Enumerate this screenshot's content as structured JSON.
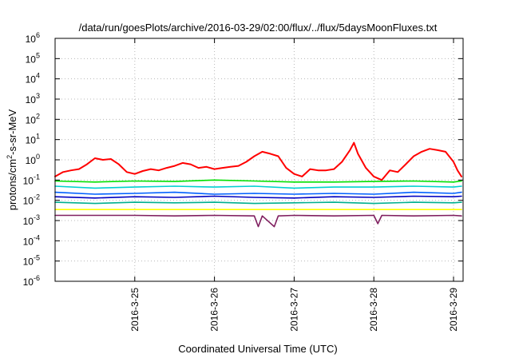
{
  "chart_data": {
    "type": "line",
    "title": "/data/run/goesPlots/archive/2016-03-29/02:00/flux/../flux/5daysMoonFluxes.txt",
    "xlabel": "Coordinated Universal Time (UTC)",
    "ylabel_base": "protons/cm",
    "ylabel_sup": "2",
    "ylabel_rest": "-s-sr-MeV",
    "y_scale": "log",
    "ylim": [
      1e-06,
      1000000
    ],
    "xlim": [
      24.0,
      29.12
    ],
    "grid": true,
    "y_ticks": [
      {
        "exp": "6",
        "value": 1000000
      },
      {
        "exp": "5",
        "value": 100000
      },
      {
        "exp": "4",
        "value": 10000
      },
      {
        "exp": "3",
        "value": 1000
      },
      {
        "exp": "2",
        "value": 100
      },
      {
        "exp": "1",
        "value": 10
      },
      {
        "exp": "0",
        "value": 1
      },
      {
        "exp": "-1",
        "value": 0.1
      },
      {
        "exp": "-2",
        "value": 0.01
      },
      {
        "exp": "-3",
        "value": 0.001
      },
      {
        "exp": "-4",
        "value": 0.0001
      },
      {
        "exp": "-5",
        "value": 1e-05
      },
      {
        "exp": "-6",
        "value": 1e-06
      }
    ],
    "x_ticks": [
      {
        "label": "2016-3-25",
        "day": 25
      },
      {
        "label": "2016-3-26",
        "day": 26
      },
      {
        "label": "2016-3-27",
        "day": 27
      },
      {
        "label": "2016-3-28",
        "day": 28
      },
      {
        "label": "2016-3-29",
        "day": 29
      }
    ],
    "series": [
      {
        "color": "#ff0000",
        "x": [
          24.0,
          24.1,
          24.2,
          24.3,
          24.4,
          24.5,
          24.6,
          24.7,
          24.8,
          24.9,
          25.0,
          25.1,
          25.2,
          25.3,
          25.4,
          25.5,
          25.6,
          25.7,
          25.8,
          25.9,
          26.0,
          26.1,
          26.2,
          26.3,
          26.4,
          26.5,
          26.6,
          26.7,
          26.8,
          26.9,
          27.0,
          27.1,
          27.2,
          27.3,
          27.4,
          27.5,
          27.6,
          27.7,
          27.75,
          27.8,
          27.9,
          28.0,
          28.1,
          28.2,
          28.3,
          28.4,
          28.5,
          28.6,
          28.7,
          28.8,
          28.9,
          29.0,
          29.05,
          29.1
        ],
        "y": [
          0.15,
          0.25,
          0.3,
          0.35,
          0.6,
          1.2,
          1.0,
          1.1,
          0.6,
          0.25,
          0.2,
          0.28,
          0.35,
          0.3,
          0.4,
          0.5,
          0.7,
          0.6,
          0.4,
          0.45,
          0.35,
          0.4,
          0.45,
          0.5,
          0.8,
          1.5,
          2.5,
          2.0,
          1.5,
          0.4,
          0.2,
          0.15,
          0.35,
          0.3,
          0.3,
          0.35,
          0.8,
          3.0,
          7.0,
          2.0,
          0.4,
          0.15,
          0.1,
          0.3,
          0.25,
          0.6,
          1.5,
          2.5,
          3.5,
          3.0,
          2.5,
          0.8,
          0.3,
          0.15
        ]
      },
      {
        "color": "#00e000",
        "x": [
          24.0,
          24.5,
          25.0,
          25.5,
          26.0,
          26.5,
          27.0,
          27.5,
          28.0,
          28.5,
          29.0,
          29.1
        ],
        "y": [
          0.09,
          0.08,
          0.09,
          0.085,
          0.1,
          0.09,
          0.08,
          0.08,
          0.085,
          0.09,
          0.08,
          0.09
        ]
      },
      {
        "color": "#00d0d0",
        "x": [
          24.0,
          24.5,
          25.0,
          25.5,
          26.0,
          26.5,
          27.0,
          27.5,
          28.0,
          28.5,
          29.0,
          29.1
        ],
        "y": [
          0.05,
          0.04,
          0.045,
          0.05,
          0.045,
          0.05,
          0.04,
          0.045,
          0.045,
          0.05,
          0.045,
          0.05
        ]
      },
      {
        "color": "#0060ff",
        "x": [
          24.0,
          24.5,
          25.0,
          25.5,
          26.0,
          26.5,
          27.0,
          27.5,
          28.0,
          28.5,
          29.0,
          29.1
        ],
        "y": [
          0.025,
          0.02,
          0.022,
          0.025,
          0.02,
          0.022,
          0.02,
          0.022,
          0.02,
          0.025,
          0.022,
          0.025
        ]
      },
      {
        "color": "#0000c0",
        "x": [
          24.0,
          24.5,
          25.0,
          25.5,
          26.0,
          26.5,
          27.0,
          27.5,
          28.0,
          28.5,
          29.0,
          29.1
        ],
        "y": [
          0.015,
          0.013,
          0.015,
          0.014,
          0.016,
          0.014,
          0.013,
          0.015,
          0.014,
          0.016,
          0.015,
          0.016
        ]
      },
      {
        "color": "#00b090",
        "x": [
          24.0,
          24.5,
          25.0,
          25.5,
          26.0,
          26.5,
          27.0,
          27.5,
          28.0,
          28.5,
          29.0,
          29.1
        ],
        "y": [
          0.008,
          0.007,
          0.008,
          0.0075,
          0.008,
          0.007,
          0.0075,
          0.008,
          0.007,
          0.008,
          0.0075,
          0.008
        ]
      },
      {
        "color": "#ffff00",
        "x": [
          24.0,
          24.5,
          25.0,
          25.5,
          26.0,
          26.5,
          27.0,
          27.5,
          28.0,
          28.5,
          29.0,
          29.1
        ],
        "y": [
          0.0035,
          0.0035,
          0.0035,
          0.0035,
          0.0035,
          0.0035,
          0.0035,
          0.0035,
          0.0035,
          0.0035,
          0.0035,
          0.0035
        ]
      },
      {
        "color": "#802060",
        "x": [
          24.0,
          24.5,
          25.0,
          25.5,
          26.0,
          26.5,
          26.55,
          26.6,
          26.75,
          26.8,
          27.0,
          27.5,
          28.0,
          28.05,
          28.1,
          28.5,
          29.0,
          29.1
        ],
        "y": [
          0.0018,
          0.0018,
          0.0018,
          0.0017,
          0.0018,
          0.0017,
          0.0005,
          0.0017,
          0.0005,
          0.0017,
          0.0018,
          0.0017,
          0.0018,
          0.0007,
          0.0018,
          0.0017,
          0.0018,
          0.0017
        ]
      }
    ]
  }
}
